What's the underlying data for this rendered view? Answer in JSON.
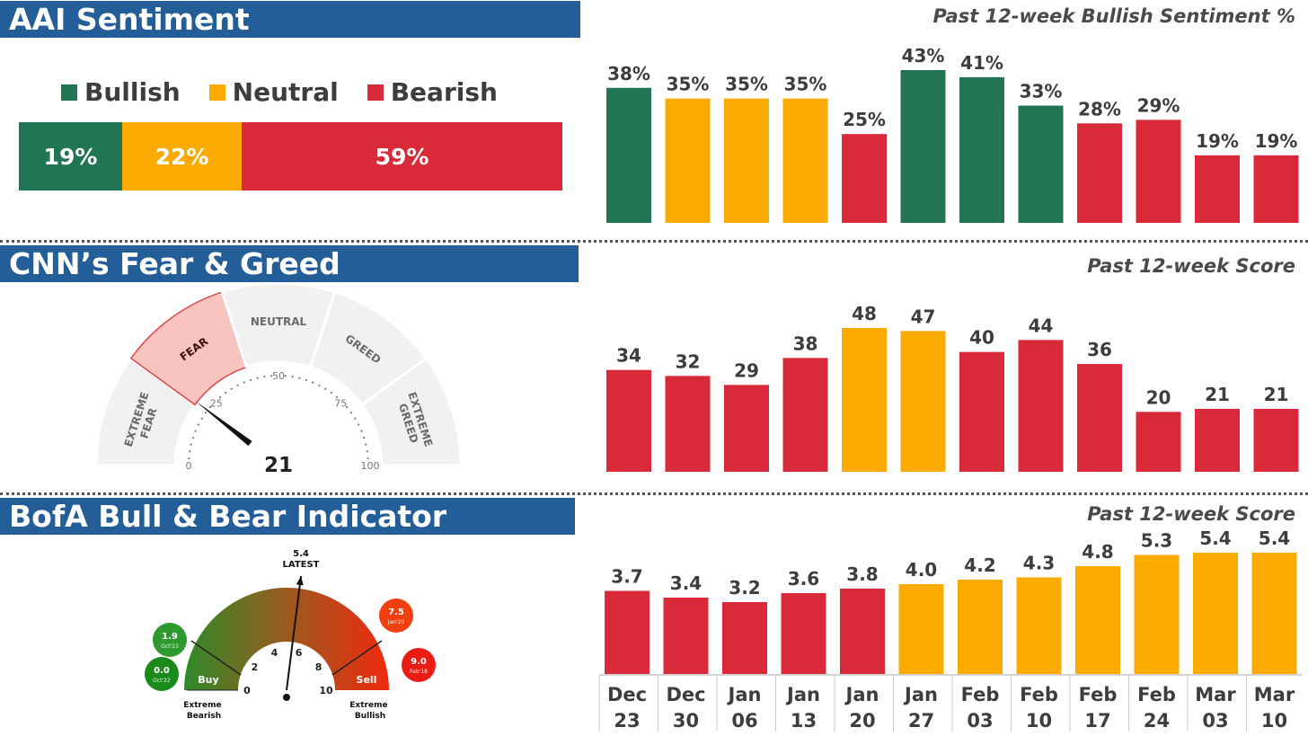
{
  "colors": {
    "bullish": "#217454",
    "neutral": "#fbaa00",
    "bearish": "#d92a3a",
    "banner": "#245e99"
  },
  "aai": {
    "title": "AAI Sentiment",
    "subtitle": "Past 12-week Bullish Sentiment %",
    "legend": [
      {
        "label": "Bullish",
        "color": "bullish"
      },
      {
        "label": "Neutral",
        "color": "neutral"
      },
      {
        "label": "Bearish",
        "color": "bearish"
      }
    ],
    "breakdown": [
      {
        "label": "19%",
        "value": 19,
        "color": "bullish"
      },
      {
        "label": "22%",
        "value": 22,
        "color": "neutral"
      },
      {
        "label": "59%",
        "value": 59,
        "color": "bearish"
      }
    ]
  },
  "cnn": {
    "title": "CNN’s Fear & Greed",
    "subtitle": "Past 12-week Score",
    "gauge": {
      "value": 21,
      "value_label": "21",
      "zones": [
        "EXTREME FEAR",
        "FEAR",
        "NEUTRAL",
        "GREED",
        "EXTREME GREED"
      ],
      "ticks": [
        "0",
        "25",
        "50",
        "75",
        "100"
      ]
    }
  },
  "bofa": {
    "title": "BofA Bull & Bear Indicator",
    "subtitle": "Past 12-week Score",
    "gauge": {
      "value": 5.4,
      "value_label": "5.4",
      "latest_label": "LATEST",
      "ticks": [
        "0",
        "2",
        "4",
        "6",
        "8",
        "10"
      ],
      "buy_label": "Buy",
      "sell_label": "Sell",
      "left_label": "Extreme Bearish",
      "right_label": "Extreme Bullish",
      "history": [
        {
          "value": "1.9",
          "date": "Oct'23",
          "color": "#2e9a2e"
        },
        {
          "value": "0.0",
          "date": "Oct'22",
          "color": "#1a8a1a"
        },
        {
          "value": "7.5",
          "date": "Jan'20",
          "color": "#f04010"
        },
        {
          "value": "9.0",
          "date": "Feb'18",
          "color": "#ea1b12"
        }
      ]
    }
  },
  "chart_data": [
    {
      "type": "bar",
      "title": "Past 12-week Bullish Sentiment %",
      "categories": [
        "Dec 23",
        "Dec 30",
        "Jan 06",
        "Jan 13",
        "Jan 20",
        "Jan 27",
        "Feb 03",
        "Feb 10",
        "Feb 17",
        "Feb 24",
        "Mar 03",
        "Mar 10"
      ],
      "values": [
        38,
        35,
        35,
        35,
        25,
        43,
        41,
        33,
        28,
        29,
        19,
        19
      ],
      "labels": [
        "38%",
        "35%",
        "35%",
        "35%",
        "25%",
        "43%",
        "41%",
        "33%",
        "28%",
        "29%",
        "19%",
        "19%"
      ],
      "colors": [
        "bullish",
        "neutral",
        "neutral",
        "neutral",
        "bearish",
        "bullish",
        "bullish",
        "bullish",
        "bearish",
        "bearish",
        "bearish",
        "bearish"
      ],
      "ylim": [
        0,
        43
      ]
    },
    {
      "type": "bar",
      "title": "Past 12-week Score",
      "categories": [
        "Dec 23",
        "Dec 30",
        "Jan 06",
        "Jan 13",
        "Jan 20",
        "Jan 27",
        "Feb 03",
        "Feb 10",
        "Feb 17",
        "Feb 24",
        "Mar 03",
        "Mar 10"
      ],
      "values": [
        34,
        32,
        29,
        38,
        48,
        47,
        40,
        44,
        36,
        20,
        21,
        21
      ],
      "labels": [
        "34",
        "32",
        "29",
        "38",
        "48",
        "47",
        "40",
        "44",
        "36",
        "20",
        "21",
        "21"
      ],
      "colors": [
        "bearish",
        "bearish",
        "bearish",
        "bearish",
        "neutral",
        "neutral",
        "bearish",
        "bearish",
        "bearish",
        "bearish",
        "bearish",
        "bearish"
      ],
      "ylim": [
        0,
        48
      ]
    },
    {
      "type": "bar",
      "title": "Past 12-week Score",
      "categories": [
        "Dec 23",
        "Dec 30",
        "Jan 06",
        "Jan 13",
        "Jan 20",
        "Jan 27",
        "Feb 03",
        "Feb 10",
        "Feb 17",
        "Feb 24",
        "Mar 03",
        "Mar 10"
      ],
      "x_tick_top": [
        "Dec",
        "Dec",
        "Jan",
        "Jan",
        "Jan",
        "Jan",
        "Feb",
        "Feb",
        "Feb",
        "Feb",
        "Mar",
        "Mar"
      ],
      "x_tick_bottom": [
        "23",
        "30",
        "06",
        "13",
        "20",
        "27",
        "03",
        "10",
        "17",
        "24",
        "03",
        "10"
      ],
      "values": [
        3.7,
        3.4,
        3.2,
        3.6,
        3.8,
        4.0,
        4.2,
        4.3,
        4.8,
        5.3,
        5.4,
        5.4
      ],
      "labels": [
        "3.7",
        "3.4",
        "3.2",
        "3.6",
        "3.8",
        "4.0",
        "4.2",
        "4.3",
        "4.8",
        "5.3",
        "5.4",
        "5.4"
      ],
      "colors": [
        "bearish",
        "bearish",
        "bearish",
        "bearish",
        "bearish",
        "neutral",
        "neutral",
        "neutral",
        "neutral",
        "neutral",
        "neutral",
        "neutral"
      ],
      "ylim": [
        0,
        5.4
      ]
    }
  ]
}
